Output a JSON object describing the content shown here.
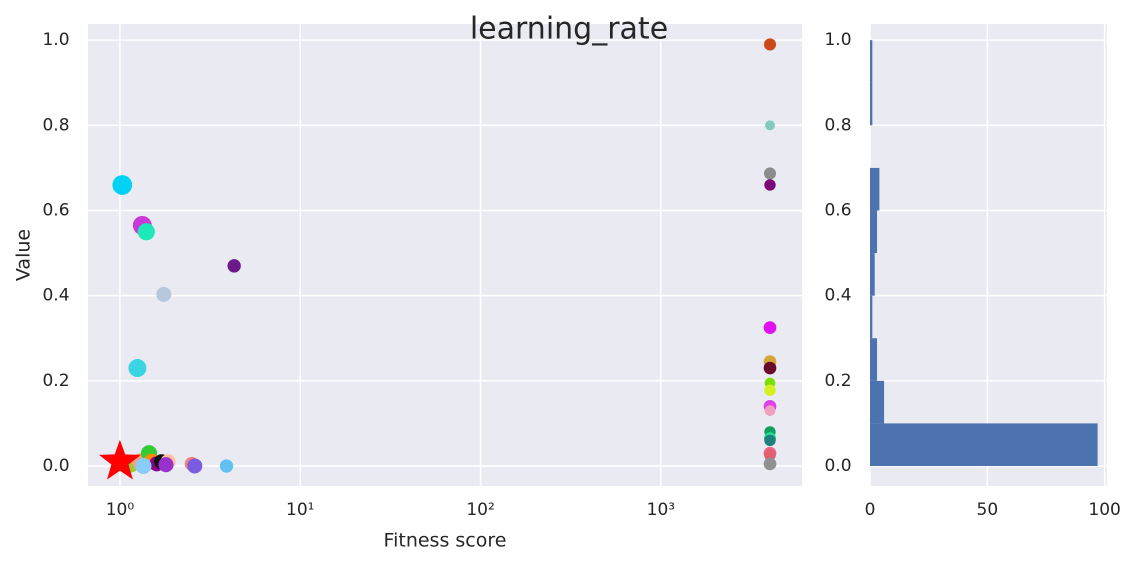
{
  "chart_data": [
    {
      "type": "scatter",
      "title": "learning_rate",
      "x_label": "Fitness score",
      "y_label": "Value",
      "xscale": "log",
      "grid": true,
      "xlim": [
        0.665,
        6065
      ],
      "ylim": [
        -0.047,
        1.038
      ],
      "xticks": [
        {
          "value": 1,
          "label": "10⁰"
        },
        {
          "value": 10,
          "label": "10¹"
        },
        {
          "value": 100,
          "label": "10²"
        },
        {
          "value": 1000,
          "label": "10³"
        }
      ],
      "yticks": [
        {
          "value": 0,
          "label": "0.0"
        },
        0.2,
        0.4,
        0.6,
        0.8,
        {
          "value": 1,
          "label": "1.0"
        }
      ],
      "x": [
        1.03,
        1.33,
        1.4,
        4.3,
        1.75,
        1.25,
        3.9,
        2.5,
        2.6,
        1.15,
        1.3,
        1.45,
        1.5,
        1.6,
        1.7,
        1.85,
        1.8,
        1.35,
        4030,
        4030,
        4030,
        4030,
        4030,
        4030,
        4030,
        4030,
        4030,
        4030,
        4030,
        4030,
        4030,
        4030,
        4030,
        4030,
        4030
      ],
      "y": [
        0.66,
        0.565,
        0.55,
        0.47,
        0.403,
        0.23,
        0.0,
        0.005,
        0.0,
        0.005,
        0.01,
        0.03,
        0.01,
        0.005,
        0.01,
        0.01,
        0.003,
        0.0,
        0.99,
        0.8,
        0.687,
        0.66,
        0.325,
        0.245,
        0.23,
        0.195,
        0.178,
        0.14,
        0.13,
        0.08,
        0.065,
        0.06,
        0.03,
        0.025,
        0.005
      ],
      "sizes": [
        120,
        110,
        90,
        55,
        70,
        100,
        55,
        60,
        70,
        90,
        90,
        80,
        80,
        70,
        70,
        70,
        70,
        80,
        45,
        30,
        45,
        40,
        50,
        50,
        50,
        35,
        40,
        50,
        35,
        40,
        45,
        40,
        50,
        40,
        50
      ],
      "colors": [
        "#00d2f5",
        "#c83ad8",
        "#1de8b8",
        "#6a1a8a",
        "#b8c8dc",
        "#3ad4e4",
        "#60c0f0",
        "#f08080",
        "#7b5ce0",
        "#9acd32",
        "#ffa07a",
        "#32cd32",
        "#ff8c00",
        "#8b008b",
        "#111111",
        "#ffc0a0",
        "#9932cc",
        "#87cefa",
        "#cc4a1a",
        "#80cbbc",
        "#8c8c8c",
        "#7a0a7a",
        "#e010f0",
        "#d4a838",
        "#6a0a2a",
        "#7ae000",
        "#d4f020",
        "#e040e8",
        "#f0a0c0",
        "#10a060",
        "#20e090",
        "#208080",
        "#f06080",
        "#e06070",
        "#909090"
      ],
      "best": {
        "x": 1.0,
        "y": 0.01
      }
    },
    {
      "type": "histogram",
      "orientation": "horizontal",
      "grid": true,
      "color": "#4c72b0",
      "bins": [
        0,
        0.1,
        0.2,
        0.3,
        0.4,
        0.5,
        0.6,
        0.7,
        0.8,
        0.9,
        1.0
      ],
      "values": [
        97,
        6,
        3,
        1,
        2,
        3,
        4,
        0,
        1,
        1
      ],
      "xlim": [
        0,
        101
      ],
      "ylim": [
        -0.047,
        1.038
      ],
      "xticks": [
        0,
        50,
        100
      ],
      "yticks": [
        {
          "value": 0,
          "label": "0.0"
        },
        0.2,
        0.4,
        0.6,
        0.8,
        {
          "value": 1,
          "label": "1.0"
        }
      ]
    }
  ]
}
